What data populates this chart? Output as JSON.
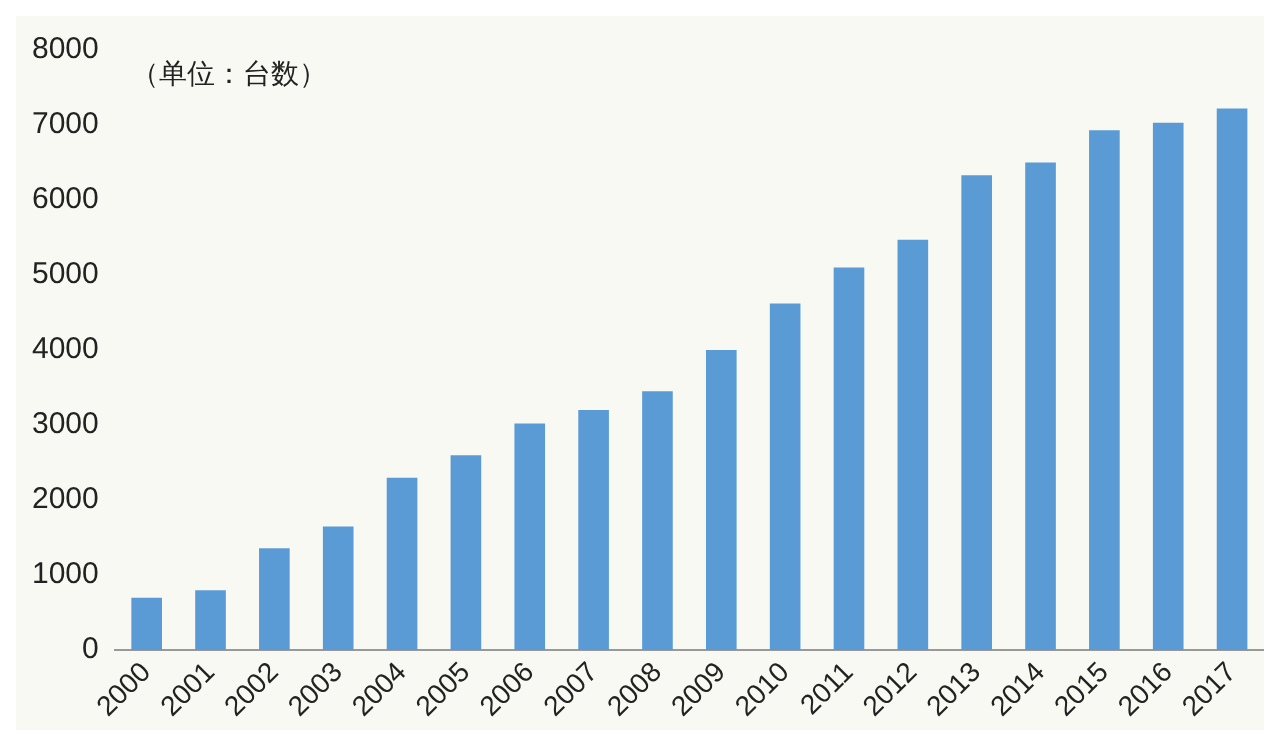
{
  "chart_data": {
    "type": "bar",
    "categories": [
      "2000",
      "2001",
      "2002",
      "2003",
      "2004",
      "2005",
      "2006",
      "2007",
      "2008",
      "2009",
      "2010",
      "2011",
      "2012",
      "2013",
      "2014",
      "2015",
      "2016",
      "2017"
    ],
    "values": [
      700,
      800,
      1360,
      1650,
      2300,
      2600,
      3020,
      3200,
      3450,
      4000,
      4620,
      5100,
      5470,
      6330,
      6500,
      6930,
      7030,
      7220
    ],
    "color": "#5b9bd5",
    "ylim": [
      0,
      8000
    ],
    "yticks": [
      0,
      1000,
      2000,
      3000,
      4000,
      5000,
      6000,
      7000,
      8000
    ],
    "grid": false,
    "legend": false,
    "annotations": [
      "（单位：台数）"
    ]
  }
}
